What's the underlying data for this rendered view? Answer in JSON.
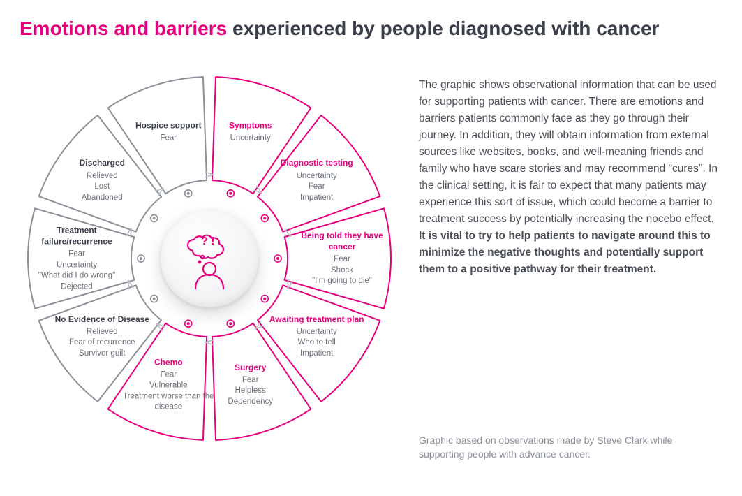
{
  "title": {
    "accent": "Emotions and barriers",
    "rest": " experienced by people diagnosed with cancer"
  },
  "colors": {
    "accent": "#e6007e",
    "gray_stroke": "#8a8f98",
    "gray_text": "#6a6f78",
    "dark_text": "#3a3f4a",
    "bg": "#ffffff",
    "seg_fill": "#ffffff"
  },
  "geometry": {
    "outer_r": 260,
    "inner_r": 112,
    "gap_deg": 4,
    "corner_r": 14,
    "stroke_w": 2,
    "dot_ring_r": 98,
    "dot_r_outer": 5,
    "dot_r_inner": 2,
    "arrow_ring_r": 120
  },
  "segments": [
    {
      "start": -90,
      "title": "Symptoms",
      "color": "pink",
      "items": [
        "Uncertainty"
      ]
    },
    {
      "start": -54,
      "title": "Diagnostic testing",
      "color": "pink",
      "items": [
        "Uncertainty",
        "Fear",
        "Impatient"
      ]
    },
    {
      "start": -18,
      "title": "Being told they have cancer",
      "color": "pink",
      "items": [
        "Fear",
        "Shock",
        "\"I'm going to die\""
      ]
    },
    {
      "start": 18,
      "title": "Awaiting treatment plan",
      "color": "pink",
      "items": [
        "Uncertainty",
        "Who to tell",
        "Impatient"
      ]
    },
    {
      "start": 54,
      "title": "Surgery",
      "color": "pink",
      "items": [
        "Fear",
        "Helpless",
        "Dependency"
      ]
    },
    {
      "start": 90,
      "title": "Chemo",
      "color": "pink",
      "items": [
        "Fear",
        "Vulnerable",
        "Treatment worse than the disease"
      ]
    },
    {
      "start": 126,
      "title": "No Evidence of Disease",
      "color": "gray",
      "items": [
        "Relieved",
        "Fear of recurrence",
        "Survivor guilt"
      ]
    },
    {
      "start": 162,
      "title": "Treatment failure/recurrence",
      "color": "gray",
      "items": [
        "Fear",
        "Uncertainty",
        "\"What did I do wrong\"",
        "Dejected"
      ]
    },
    {
      "start": 198,
      "title": "Discharged",
      "color": "gray",
      "items": [
        "Relieved",
        "Lost",
        "Abandoned"
      ]
    },
    {
      "start": 234,
      "title": "Hospice support",
      "color": "gray",
      "items": [
        "Fear"
      ]
    }
  ],
  "rhs": {
    "body_plain": "The graphic shows observational information that can be used for supporting patients with cancer. There are emotions and barriers patients commonly face as they go through their journey. In addition, they will obtain information from external sources like websites, books, and well-meaning friends and family who have scare stories and may recommend \"cures\". In the clinical setting, it is fair to expect that many patients may experience this sort of issue, which could become a barrier to treatment success by potentially increasing the nocebo effect. ",
    "body_bold": "It is vital to try to help patients to navigate around this to minimize the negative thoughts and potentially support them to a positive pathway for their treatment.",
    "attribution": "Graphic based on observations made by Steve Clark while supporting people with advance cancer."
  }
}
